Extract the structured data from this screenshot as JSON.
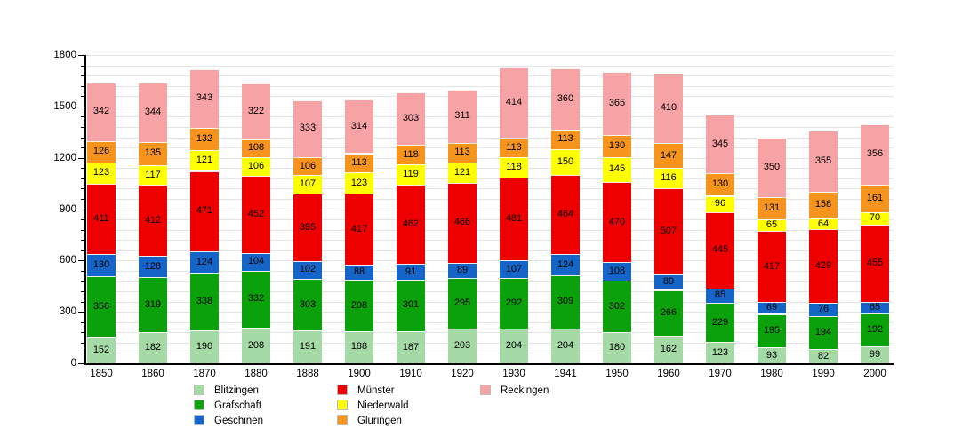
{
  "chart_data": {
    "type": "bar",
    "stacked": true,
    "title": "",
    "xlabel": "",
    "ylabel": "",
    "categories": [
      "1850",
      "1860",
      "1870",
      "1880",
      "1888",
      "1900",
      "1910",
      "1920",
      "1930",
      "1941",
      "1950",
      "1960",
      "1970",
      "1980",
      "1990",
      "2000"
    ],
    "series": [
      {
        "name": "Blitzingen",
        "color": "#a5d9a5",
        "values": [
          152,
          182,
          190,
          208,
          191,
          188,
          187,
          203,
          204,
          204,
          180,
          162,
          123,
          93,
          82,
          99
        ]
      },
      {
        "name": "Grafschaft",
        "color": "#0ba10b",
        "values": [
          356,
          319,
          338,
          332,
          303,
          298,
          301,
          295,
          292,
          309,
          302,
          266,
          229,
          195,
          194,
          192
        ]
      },
      {
        "name": "Geschinen",
        "color": "#1565c8",
        "values": [
          130,
          128,
          124,
          104,
          102,
          88,
          91,
          89,
          107,
          124,
          108,
          89,
          85,
          69,
          76,
          65
        ]
      },
      {
        "name": "Münster",
        "color": "#ee0000",
        "values": [
          411,
          412,
          471,
          452,
          395,
          417,
          462,
          466,
          481,
          464,
          470,
          507,
          445,
          417,
          429,
          455
        ]
      },
      {
        "name": "Niederwald",
        "color": "#ffff00",
        "values": [
          123,
          117,
          121,
          106,
          107,
          123,
          119,
          121,
          118,
          150,
          145,
          116,
          96,
          65,
          64,
          70
        ]
      },
      {
        "name": "Gluringen",
        "color": "#f6941e",
        "values": [
          126,
          135,
          132,
          108,
          106,
          113,
          118,
          113,
          113,
          113,
          130,
          147,
          130,
          131,
          158,
          161
        ]
      },
      {
        "name": "Reckingen",
        "color": "#f7a3a6",
        "values": [
          342,
          344,
          343,
          322,
          333,
          314,
          303,
          311,
          414,
          360,
          365,
          410,
          345,
          350,
          355,
          356
        ]
      }
    ],
    "ylim": [
      0,
      1800
    ],
    "y_major_ticks": [
      0,
      300,
      600,
      900,
      1200,
      1500,
      1800
    ],
    "y_minor_step": 60,
    "grid": true,
    "show_value_labels": true,
    "legend_position": "bottom",
    "legend_columns": [
      [
        0,
        1,
        2
      ],
      [
        3,
        4,
        5
      ],
      [
        6
      ]
    ]
  }
}
